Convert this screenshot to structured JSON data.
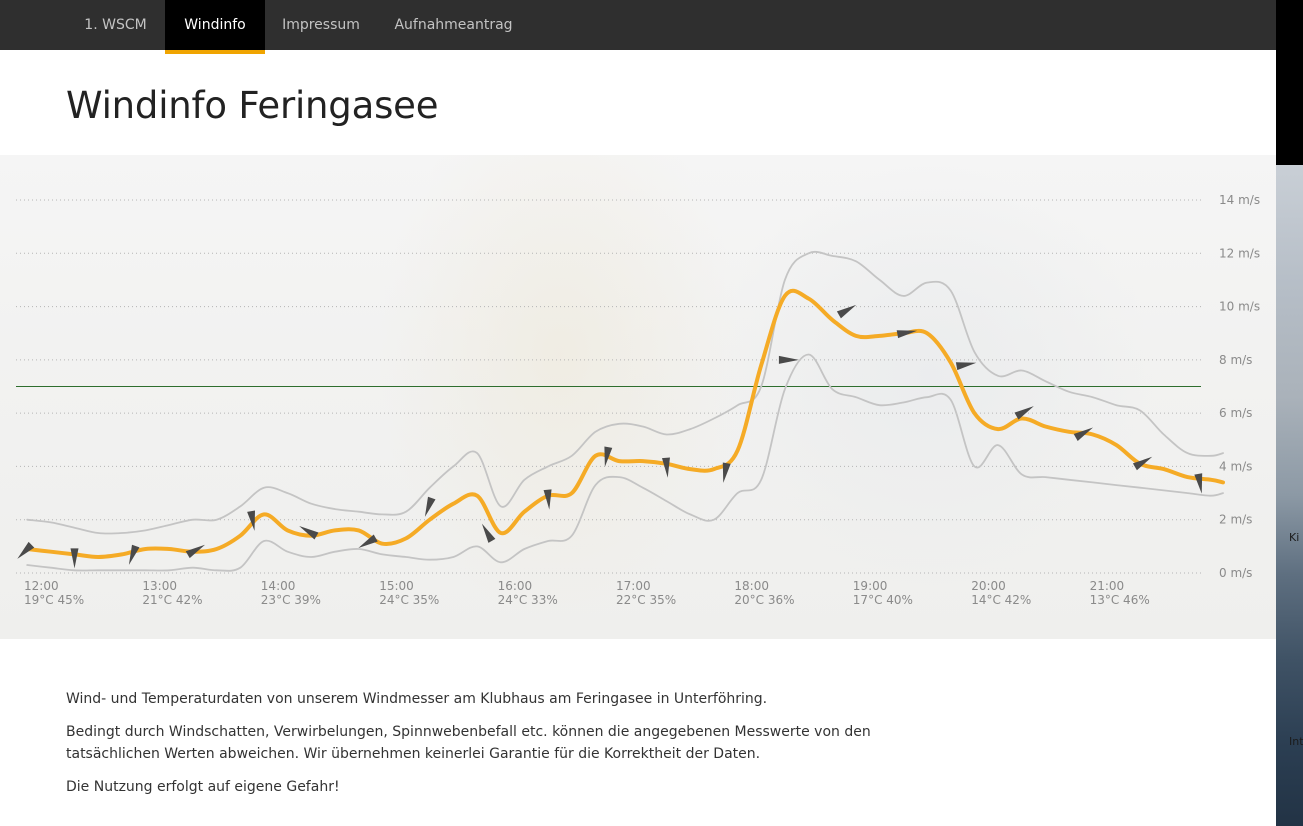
{
  "nav": {
    "items": [
      {
        "label": "1. WSCM",
        "active": false
      },
      {
        "label": "Windinfo",
        "active": true
      },
      {
        "label": "Impressum",
        "active": false
      },
      {
        "label": "Aufnahmeantrag",
        "active": false
      }
    ],
    "accent_color": "#f0a400"
  },
  "page": {
    "title": "Windinfo Feringasee"
  },
  "chart_data": {
    "type": "line",
    "y_unit": "m/s",
    "ylim": [
      0,
      14
    ],
    "y_ticks": [
      {
        "value": 0,
        "label": "0 m/s"
      },
      {
        "value": 2,
        "label": "2 m/s"
      },
      {
        "value": 4,
        "label": "4 m/s"
      },
      {
        "value": 6,
        "label": "6 m/s"
      },
      {
        "value": 8,
        "label": "8 m/s"
      },
      {
        "value": 10,
        "label": "10 m/s"
      },
      {
        "value": 12,
        "label": "12 m/s"
      },
      {
        "value": 14,
        "label": "14 m/s"
      }
    ],
    "x_ticks": [
      {
        "hour": 12,
        "time": "12:00",
        "weather": "19°C 45%"
      },
      {
        "hour": 13,
        "time": "13:00",
        "weather": "21°C 42%"
      },
      {
        "hour": 14,
        "time": "14:00",
        "weather": "23°C 39%"
      },
      {
        "hour": 15,
        "time": "15:00",
        "weather": "24°C 35%"
      },
      {
        "hour": 16,
        "time": "16:00",
        "weather": "24°C 33%"
      },
      {
        "hour": 17,
        "time": "17:00",
        "weather": "22°C 35%"
      },
      {
        "hour": 18,
        "time": "18:00",
        "weather": "20°C 36%"
      },
      {
        "hour": 19,
        "time": "19:00",
        "weather": "17°C 40%"
      },
      {
        "hour": 20,
        "time": "20:00",
        "weather": "14°C 42%"
      },
      {
        "hour": 21,
        "time": "21:00",
        "weather": "13°C 46%"
      }
    ],
    "x_range": [
      11.9,
      22.0
    ],
    "threshold": 7.0,
    "colors": {
      "average": "#f5ab26",
      "gust": "#c4c4c4",
      "minimum": "#c4c4c4",
      "threshold": "#2e6e2e",
      "arrow": "#4a4a4a",
      "grid": "#b5b5b5"
    },
    "series": [
      {
        "key": "average",
        "x": [
          11.9,
          12.1,
          12.3,
          12.5,
          12.7,
          12.9,
          13.1,
          13.3,
          13.5,
          13.7,
          13.9,
          14.1,
          14.3,
          14.5,
          14.7,
          14.9,
          15.1,
          15.3,
          15.5,
          15.7,
          15.9,
          16.1,
          16.3,
          16.5,
          16.7,
          16.9,
          17.1,
          17.3,
          17.5,
          17.7,
          17.9,
          18.1,
          18.3,
          18.5,
          18.7,
          18.9,
          19.1,
          19.3,
          19.5,
          19.7,
          19.9,
          20.1,
          20.3,
          20.5,
          20.7,
          20.9,
          21.1,
          21.3,
          21.5,
          21.7,
          21.9,
          22.0
        ],
        "values": [
          0.9,
          0.8,
          0.7,
          0.6,
          0.7,
          0.9,
          0.9,
          0.8,
          0.9,
          1.4,
          2.2,
          1.6,
          1.4,
          1.6,
          1.6,
          1.1,
          1.3,
          2.0,
          2.6,
          2.9,
          1.5,
          2.3,
          2.9,
          3.0,
          4.4,
          4.2,
          4.2,
          4.1,
          3.9,
          3.9,
          4.6,
          7.8,
          10.4,
          10.3,
          9.5,
          8.9,
          8.9,
          9.0,
          9.0,
          7.9,
          6.0,
          5.4,
          5.8,
          5.5,
          5.3,
          5.2,
          4.8,
          4.1,
          3.9,
          3.6,
          3.5,
          3.4
        ]
      },
      {
        "key": "gust",
        "x": [
          11.9,
          12.1,
          12.3,
          12.5,
          12.7,
          12.9,
          13.1,
          13.3,
          13.5,
          13.7,
          13.9,
          14.1,
          14.3,
          14.5,
          14.7,
          14.9,
          15.1,
          15.3,
          15.5,
          15.7,
          15.9,
          16.1,
          16.3,
          16.5,
          16.7,
          16.9,
          17.1,
          17.3,
          17.5,
          17.7,
          17.9,
          18.1,
          18.3,
          18.5,
          18.7,
          18.9,
          19.1,
          19.3,
          19.5,
          19.7,
          19.9,
          20.1,
          20.3,
          20.5,
          20.7,
          20.9,
          21.1,
          21.3,
          21.5,
          21.7,
          21.9,
          22.0
        ],
        "values": [
          2.0,
          1.9,
          1.7,
          1.5,
          1.5,
          1.6,
          1.8,
          2.0,
          2.0,
          2.5,
          3.2,
          3.0,
          2.6,
          2.4,
          2.3,
          2.2,
          2.3,
          3.2,
          4.0,
          4.5,
          2.5,
          3.5,
          4.0,
          4.4,
          5.3,
          5.6,
          5.5,
          5.2,
          5.4,
          5.8,
          6.3,
          7.0,
          11.0,
          12.0,
          11.9,
          11.7,
          11.0,
          10.4,
          10.9,
          10.6,
          8.3,
          7.4,
          7.6,
          7.2,
          6.8,
          6.6,
          6.3,
          6.1,
          5.2,
          4.5,
          4.4,
          4.5
        ]
      },
      {
        "key": "minimum",
        "x": [
          11.9,
          12.1,
          12.3,
          12.5,
          12.7,
          12.9,
          13.1,
          13.3,
          13.5,
          13.7,
          13.9,
          14.1,
          14.3,
          14.5,
          14.7,
          14.9,
          15.1,
          15.3,
          15.5,
          15.7,
          15.9,
          16.1,
          16.3,
          16.5,
          16.7,
          16.9,
          17.1,
          17.3,
          17.5,
          17.7,
          17.9,
          18.1,
          18.3,
          18.5,
          18.7,
          18.9,
          19.1,
          19.3,
          19.5,
          19.7,
          19.9,
          20.1,
          20.3,
          20.5,
          20.7,
          20.9,
          21.1,
          21.3,
          21.5,
          21.7,
          21.9,
          22.0
        ],
        "values": [
          0.3,
          0.2,
          0.1,
          0.1,
          0.1,
          0.1,
          0.1,
          0.2,
          0.1,
          0.2,
          1.2,
          0.8,
          0.6,
          0.8,
          0.9,
          0.7,
          0.6,
          0.5,
          0.6,
          1.0,
          0.4,
          0.9,
          1.2,
          1.4,
          3.3,
          3.6,
          3.2,
          2.7,
          2.2,
          2.0,
          3.0,
          3.5,
          6.9,
          8.2,
          6.9,
          6.6,
          6.3,
          6.4,
          6.6,
          6.5,
          4.0,
          4.8,
          3.7,
          3.6,
          3.5,
          3.4,
          3.3,
          3.2,
          3.1,
          3.0,
          2.9,
          3.0
        ]
      }
    ],
    "direction_arrows": [
      {
        "x": 11.9,
        "speed": 0.9
      },
      {
        "x": 12.3,
        "speed": 0.7
      },
      {
        "x": 12.8,
        "speed": 0.8
      },
      {
        "x": 13.3,
        "speed": 0.8
      },
      {
        "x": 13.8,
        "speed": 2.1
      },
      {
        "x": 14.3,
        "speed": 1.5
      },
      {
        "x": 14.8,
        "speed": 1.2
      },
      {
        "x": 15.3,
        "speed": 2.6
      },
      {
        "x": 15.8,
        "speed": 1.4
      },
      {
        "x": 16.3,
        "speed": 2.9
      },
      {
        "x": 16.8,
        "speed": 4.5
      },
      {
        "x": 17.3,
        "speed": 4.1
      },
      {
        "x": 17.8,
        "speed": 3.9
      },
      {
        "x": 18.3,
        "speed": 8.0
      },
      {
        "x": 18.8,
        "speed": 9.8
      },
      {
        "x": 19.3,
        "speed": 9.0
      },
      {
        "x": 19.8,
        "speed": 7.8
      },
      {
        "x": 20.3,
        "speed": 6.0
      },
      {
        "x": 20.8,
        "speed": 5.2
      },
      {
        "x": 21.3,
        "speed": 4.1
      },
      {
        "x": 21.8,
        "speed": 3.5
      }
    ],
    "grid": true
  },
  "description": {
    "p1": "Wind- und Temperaturdaten von unserem Windmesser am Klubhaus am Feringasee in Unterföhring.",
    "p2_line1": "Bedingt durch Windschatten, Verwirbelungen, Spinnwebenbefall etc. können die angegebenen Messwerte von den",
    "p2_line2": "tatsächlichen Werten abweichen. Wir übernehmen keinerlei Garantie für die Korrektheit der Daten.",
    "p3": "Die Nutzung erfolgt auf eigene Gefahr!"
  },
  "edge": {
    "text1": "Ki",
    "text2": "Int"
  }
}
